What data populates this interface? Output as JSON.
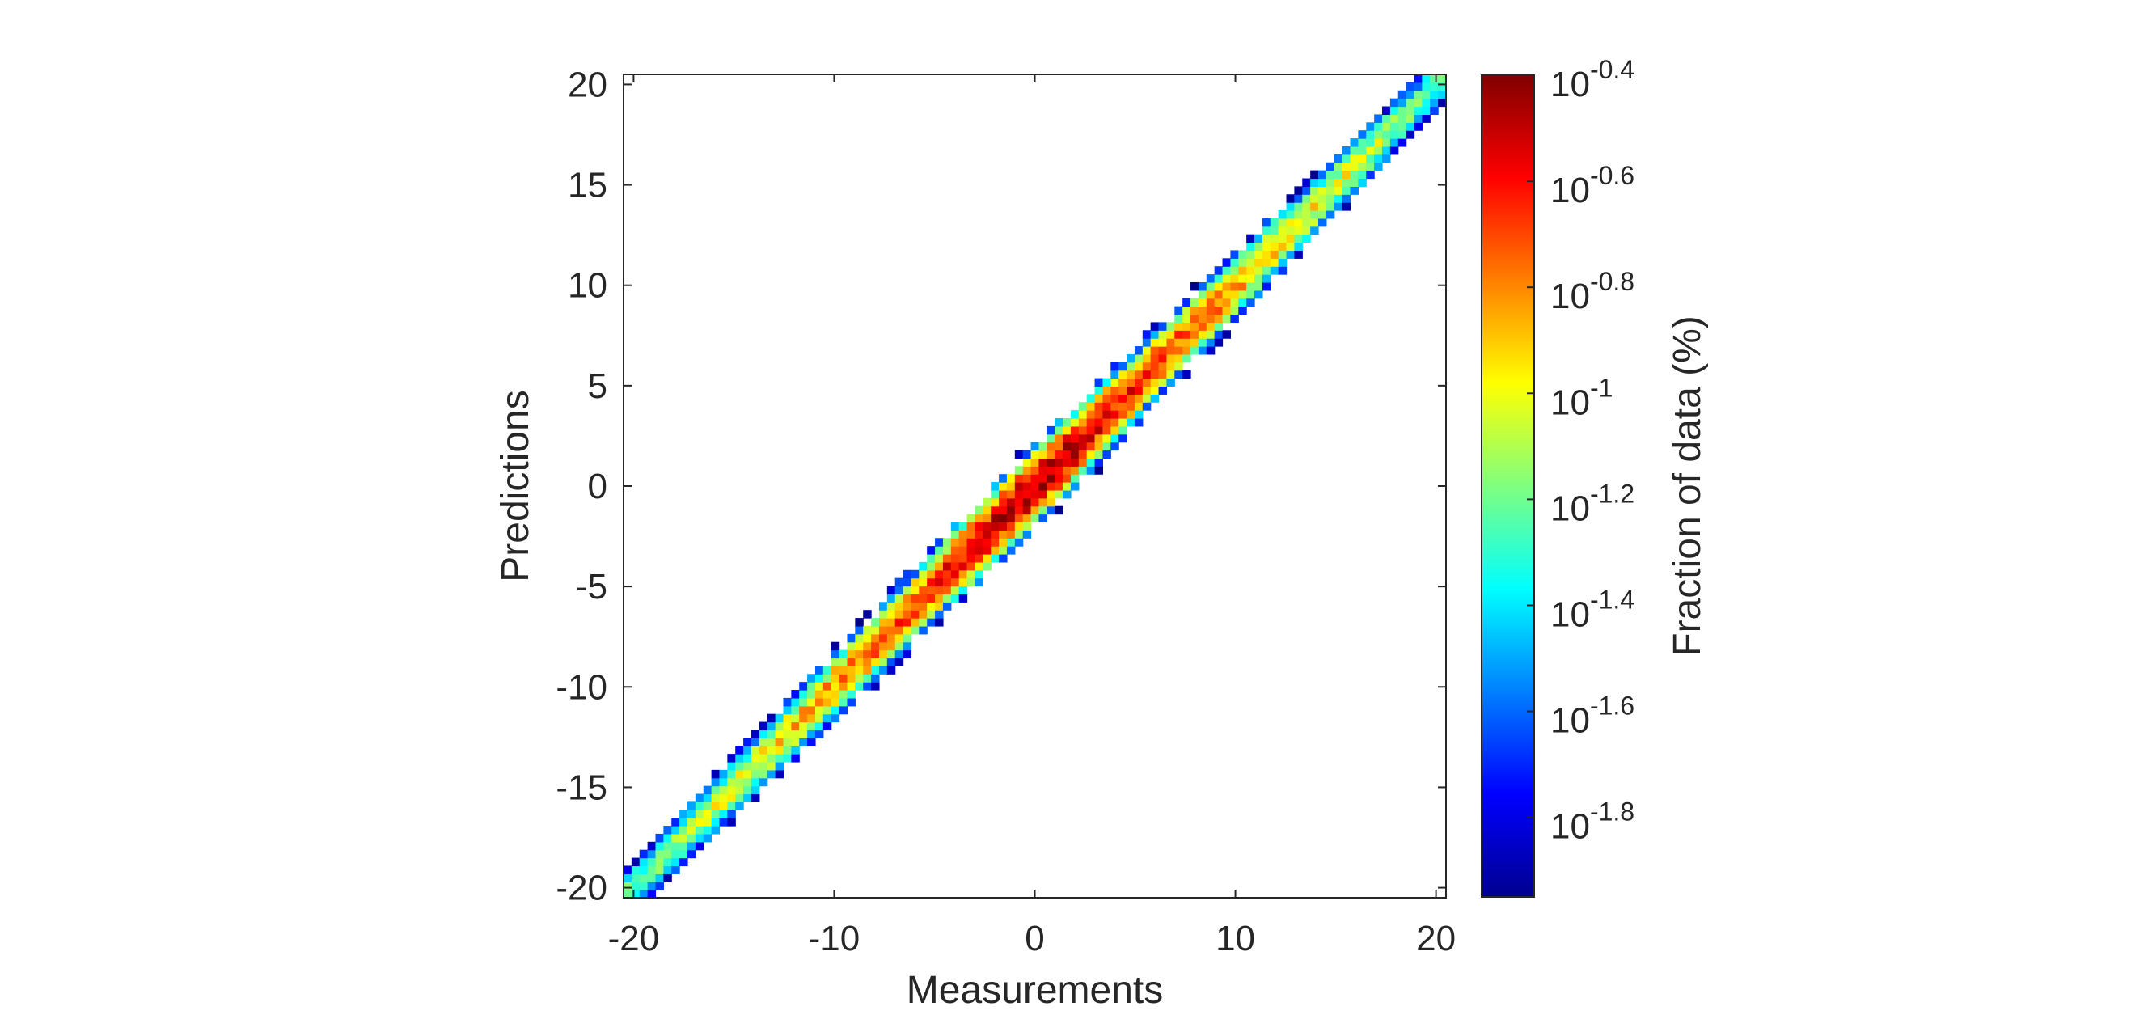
{
  "chart_data": {
    "type": "heatmap",
    "title": "",
    "xlabel": "Measurements",
    "ylabel": "Predictions",
    "xlim": [
      -20.5,
      20.5
    ],
    "ylim": [
      -20.5,
      20.5
    ],
    "x_ticks": [
      -20,
      -10,
      0,
      10,
      20
    ],
    "x_tick_labels": [
      "-20",
      "-10",
      "0",
      "10",
      "20"
    ],
    "y_ticks": [
      -20,
      -15,
      -10,
      -5,
      0,
      5,
      10,
      15,
      20
    ],
    "y_tick_labels": [
      "-20",
      "-15",
      "-10",
      "-5",
      "0",
      "5",
      "10",
      "15",
      "20"
    ],
    "bin_width": 0.4,
    "grid": false,
    "colormap": "jet",
    "colorbar": {
      "label": "Fraction of data (%)",
      "scale": "log",
      "clim_log10": [
        -1.95,
        -0.4
      ],
      "ticks_log10": [
        -0.4,
        -0.6,
        -0.8,
        -1,
        -1.2,
        -1.4,
        -1.6,
        -1.8
      ],
      "tick_labels": [
        {
          "base": "10",
          "exp": "-0.4"
        },
        {
          "base": "10",
          "exp": "-0.6"
        },
        {
          "base": "10",
          "exp": "-0.8"
        },
        {
          "base": "10",
          "exp": "-1"
        },
        {
          "base": "10",
          "exp": "-1.2"
        },
        {
          "base": "10",
          "exp": "-1.4"
        },
        {
          "base": "10",
          "exp": "-1.6"
        },
        {
          "base": "10",
          "exp": "-1.8"
        }
      ]
    },
    "density_model": {
      "description_of_cells": "2D histogram of predictions vs measurements concentrated along y = x",
      "peak_log10": -0.45,
      "floor_log10": -1.95,
      "band_halfwidth_center": 2.0,
      "band_halfwidth_ends": 1.5
    }
  }
}
